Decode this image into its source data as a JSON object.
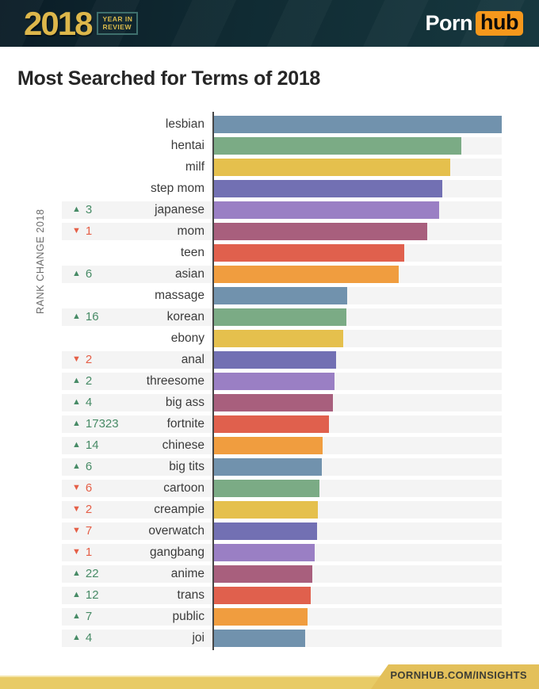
{
  "header": {
    "logo_year": "2018",
    "badge_line1": "YEAR IN",
    "badge_line2": "REVIEW",
    "brand_porn": "Porn",
    "brand_hub": "hub"
  },
  "title": "Most Searched for Terms of 2018",
  "axis_label": "RANK CHANGE 2018",
  "footer": {
    "link_text": "PORNHUB.COM/INSIGHTS"
  },
  "icons": {
    "rank_up": "▲",
    "rank_down": "▼"
  },
  "colors": {
    "rank_up": "#478b66",
    "rank_down": "#e55f47",
    "track": "#f4f4f4",
    "axis": "#474747",
    "header_bg_left": "#0a1c26",
    "header_bg_right": "#17383f",
    "gold": "#ddb74b",
    "hub_orange": "#f6981c",
    "footer_gold": "#e3c05a"
  },
  "chart_data": {
    "type": "bar",
    "orientation": "horizontal",
    "title": "Most Searched for Terms of 2018",
    "left_column_label": "RANK CHANGE 2018",
    "value_unit": "relative search volume (longest bar = 100)",
    "xlim": [
      0,
      100
    ],
    "grid": false,
    "categories": [
      "lesbian",
      "hentai",
      "milf",
      "step mom",
      "japanese",
      "mom",
      "teen",
      "asian",
      "massage",
      "korean",
      "ebony",
      "anal",
      "threesome",
      "big ass",
      "fortnite",
      "chinese",
      "big tits",
      "cartoon",
      "creampie",
      "overwatch",
      "gangbang",
      "anime",
      "trans",
      "public",
      "joi"
    ],
    "values": [
      100.0,
      86.0,
      82.1,
      79.3,
      78.2,
      74.1,
      66.1,
      64.2,
      46.3,
      46.0,
      44.9,
      42.4,
      41.9,
      41.3,
      39.9,
      37.7,
      37.5,
      36.6,
      36.1,
      35.8,
      35.0,
      34.2,
      33.6,
      32.5,
      31.7
    ],
    "rank_changes": [
      null,
      null,
      null,
      null,
      {
        "dir": "up",
        "amount": "3"
      },
      {
        "dir": "down",
        "amount": "1"
      },
      null,
      {
        "dir": "up",
        "amount": "6"
      },
      null,
      {
        "dir": "up",
        "amount": "16"
      },
      null,
      {
        "dir": "down",
        "amount": "2"
      },
      {
        "dir": "up",
        "amount": "2"
      },
      {
        "dir": "up",
        "amount": "4"
      },
      {
        "dir": "up",
        "amount": "17323"
      },
      {
        "dir": "up",
        "amount": "14"
      },
      {
        "dir": "up",
        "amount": "6"
      },
      {
        "dir": "down",
        "amount": "6"
      },
      {
        "dir": "down",
        "amount": "2"
      },
      {
        "dir": "down",
        "amount": "7"
      },
      {
        "dir": "down",
        "amount": "1"
      },
      {
        "dir": "up",
        "amount": "22"
      },
      {
        "dir": "up",
        "amount": "12"
      },
      {
        "dir": "up",
        "amount": "7"
      },
      {
        "dir": "up",
        "amount": "4"
      }
    ],
    "bar_color_cycle": [
      "#7192ad",
      "#7bab85",
      "#e5c04d",
      "#7270b3",
      "#9a7fc4",
      "#a85f7d",
      "#e0604d",
      "#f09d3f"
    ],
    "legend": null
  }
}
